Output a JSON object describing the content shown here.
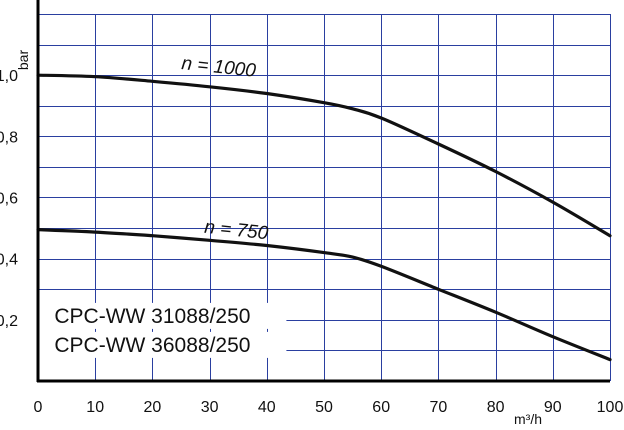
{
  "chart_data": {
    "type": "line",
    "xlabel": "m³/h",
    "ylabel": "bar",
    "xlim": [
      0,
      100
    ],
    "ylim": [
      0,
      1.2
    ],
    "x_ticks": [
      {
        "value": 0,
        "label": "0"
      },
      {
        "value": 10,
        "label": "10"
      },
      {
        "value": 20,
        "label": "20"
      },
      {
        "value": 30,
        "label": "30"
      },
      {
        "value": 40,
        "label": "40"
      },
      {
        "value": 50,
        "label": "50"
      },
      {
        "value": 60,
        "label": "60"
      },
      {
        "value": 70,
        "label": "70"
      },
      {
        "value": 80,
        "label": "80"
      },
      {
        "value": 90,
        "label": "90"
      },
      {
        "value": 100,
        "label": "100"
      }
    ],
    "y_ticks": [
      {
        "value": 1.0,
        "label": "1,0"
      },
      {
        "value": 0.8,
        "label": "0,8"
      },
      {
        "value": 0.6,
        "label": "0,6"
      },
      {
        "value": 0.4,
        "label": "0,4"
      },
      {
        "value": 0.2,
        "label": "0,2"
      }
    ],
    "grid": true,
    "grid_x_step": 10,
    "grid_y_step": 0.1,
    "grid_color": "#2a3fa0",
    "series": [
      {
        "name": "n = 1000",
        "color": "#111111",
        "label_position": {
          "x": 25,
          "y": 1.02
        },
        "points": [
          [
            0,
            1.0
          ],
          [
            10,
            0.995
          ],
          [
            20,
            0.98
          ],
          [
            30,
            0.962
          ],
          [
            40,
            0.94
          ],
          [
            50,
            0.91
          ],
          [
            55,
            0.89
          ],
          [
            60,
            0.86
          ],
          [
            70,
            0.775
          ],
          [
            80,
            0.685
          ],
          [
            90,
            0.585
          ],
          [
            100,
            0.475
          ]
        ]
      },
      {
        "name": "n = 750",
        "color": "#111111",
        "label_position": {
          "x": 29,
          "y": 0.485
        },
        "points": [
          [
            0,
            0.495
          ],
          [
            10,
            0.487
          ],
          [
            20,
            0.475
          ],
          [
            30,
            0.46
          ],
          [
            40,
            0.443
          ],
          [
            50,
            0.42
          ],
          [
            55,
            0.405
          ],
          [
            60,
            0.375
          ],
          [
            70,
            0.3
          ],
          [
            80,
            0.225
          ],
          [
            90,
            0.145
          ],
          [
            100,
            0.07
          ]
        ]
      }
    ],
    "annotations": [
      {
        "text": "CPC-WW 31088/250",
        "x": 20,
        "y": 0.19
      },
      {
        "text": "CPC-WW 36088/250",
        "x": 20,
        "y": 0.095
      }
    ]
  }
}
